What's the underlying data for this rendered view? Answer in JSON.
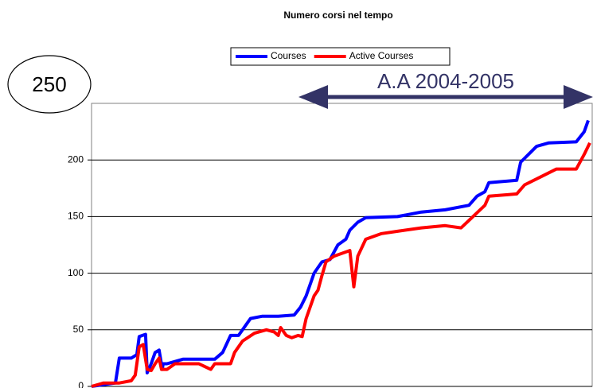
{
  "chart_data": {
    "type": "line",
    "title": "Numero corsi nel tempo",
    "annotations": [
      "250",
      "A.A 2004-2005"
    ],
    "xlim": [
      0,
      630
    ],
    "ylim": [
      0,
      250
    ],
    "yticks": [
      0,
      50,
      100,
      150,
      200
    ],
    "grid": true,
    "legend": "top",
    "series": [
      {
        "name": "Courses",
        "color": "#0000ff",
        "x": [
          0,
          30,
          35,
          50,
          57,
          60,
          68,
          70,
          75,
          80,
          85,
          89,
          90,
          95,
          115,
          155,
          165,
          175,
          185,
          195,
          200,
          215,
          235,
          255,
          263,
          270,
          280,
          285,
          290,
          300,
          310,
          320,
          325,
          335,
          345,
          385,
          415,
          445,
          475,
          485,
          495,
          500,
          535,
          540,
          550,
          560,
          575,
          610,
          620,
          625
        ],
        "values": [
          0,
          3,
          25,
          25,
          28,
          44,
          46,
          12,
          20,
          30,
          32,
          15,
          20,
          20,
          24,
          24,
          30,
          45,
          45,
          55,
          60,
          62,
          62,
          63,
          70,
          80,
          100,
          105,
          110,
          112,
          125,
          130,
          138,
          145,
          149,
          150,
          154,
          156,
          160,
          168,
          172,
          180,
          182,
          198,
          205,
          212,
          215,
          216,
          225,
          235
        ]
      },
      {
        "name": "Active Courses",
        "color": "#ff0000",
        "x": [
          0,
          15,
          35,
          50,
          55,
          60,
          65,
          70,
          75,
          80,
          85,
          88,
          95,
          105,
          135,
          150,
          155,
          175,
          180,
          190,
          205,
          220,
          230,
          235,
          238,
          245,
          252,
          260,
          265,
          270,
          280,
          285,
          290,
          295,
          305,
          325,
          330,
          335,
          345,
          365,
          385,
          415,
          445,
          465,
          480,
          495,
          500,
          535,
          545,
          565,
          585,
          610,
          620,
          627
        ],
        "values": [
          0,
          3,
          3,
          5,
          10,
          35,
          37,
          15,
          14,
          20,
          25,
          15,
          15,
          20,
          20,
          15,
          20,
          20,
          30,
          40,
          47,
          50,
          48,
          45,
          52,
          45,
          43,
          45,
          44,
          60,
          80,
          85,
          98,
          110,
          115,
          120,
          88,
          115,
          130,
          135,
          137,
          140,
          142,
          140,
          150,
          160,
          168,
          170,
          178,
          185,
          192,
          192,
          205,
          215
        ]
      }
    ]
  }
}
